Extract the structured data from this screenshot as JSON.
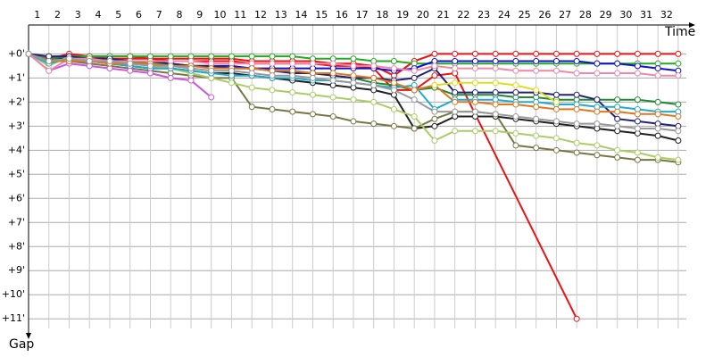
{
  "chart_data": {
    "type": "line",
    "x_axis_label": "Time",
    "y_axis_label": "Gap",
    "x": [
      0,
      1,
      2,
      3,
      4,
      5,
      6,
      7,
      8,
      9,
      10,
      11,
      12,
      13,
      14,
      15,
      16,
      17,
      18,
      19,
      20,
      21,
      22,
      23,
      24,
      25,
      26,
      27,
      28,
      29,
      30,
      31,
      32
    ],
    "xlim": [
      0,
      32.4
    ],
    "xticks": [
      1,
      2,
      3,
      4,
      5,
      6,
      7,
      8,
      9,
      10,
      11,
      12,
      13,
      14,
      15,
      16,
      17,
      18,
      19,
      20,
      21,
      22,
      23,
      24,
      25,
      26,
      27,
      28,
      29,
      30,
      31,
      32
    ],
    "ylim": [
      -1.2,
      11.4
    ],
    "y_inverted": true,
    "grid": true,
    "yticks": [
      {
        "value": 0,
        "label": "+0'"
      },
      {
        "value": 1,
        "label": "+1'"
      },
      {
        "value": 2,
        "label": "+2'"
      },
      {
        "value": 3,
        "label": "+3'"
      },
      {
        "value": 4,
        "label": "+4'"
      },
      {
        "value": 5,
        "label": "+5'"
      },
      {
        "value": 6,
        "label": "+6'"
      },
      {
        "value": 7,
        "label": "+7'"
      },
      {
        "value": 8,
        "label": "+8'"
      },
      {
        "value": 9,
        "label": "+9'"
      },
      {
        "value": 10,
        "label": "+10'"
      },
      {
        "value": 11,
        "label": "+11'"
      }
    ],
    "series": [
      {
        "color": "#ee1111",
        "values": [
          0,
          0.2,
          0,
          0.1,
          0.1,
          0.1,
          0.2,
          0.2,
          0.2,
          0.2,
          0.2,
          0.3,
          0.3,
          0.3,
          0.3,
          0.4,
          0.4,
          0.5,
          0.9,
          0.3,
          0,
          0,
          0,
          0,
          0,
          0,
          0,
          0,
          0,
          0,
          0,
          0,
          0
        ]
      },
      {
        "color": "#ee1111",
        "x": [
          0,
          1,
          2,
          3,
          4,
          5,
          6,
          7,
          8,
          9,
          10,
          11,
          12,
          13,
          14,
          15,
          16,
          17,
          18,
          19,
          20,
          21,
          27
        ],
        "values": [
          0,
          0.2,
          0.1,
          0.1,
          0.2,
          0.2,
          0.2,
          0.3,
          0.3,
          0.3,
          0.3,
          0.4,
          0.4,
          0.4,
          0.4,
          0.5,
          0.5,
          0.6,
          1.5,
          1.5,
          0.9,
          0.8,
          11
        ]
      },
      {
        "color": "#22aa22",
        "values": [
          0,
          0.3,
          0.1,
          0.1,
          0.1,
          0.1,
          0.1,
          0.1,
          0.1,
          0.1,
          0.1,
          0.1,
          0.1,
          0.1,
          0.2,
          0.2,
          0.2,
          0.3,
          0.3,
          0.4,
          0.4,
          0.4,
          0.4,
          0.4,
          0.4,
          0.4,
          0.4,
          0.4,
          0.4,
          0.4,
          0.4,
          0.4,
          0.4
        ]
      },
      {
        "color": "#1111cc",
        "values": [
          0,
          0.2,
          0.2,
          0.3,
          0.3,
          0.4,
          0.4,
          0.4,
          0.5,
          0.5,
          0.5,
          0.6,
          0.6,
          0.6,
          0.6,
          0.6,
          0.6,
          0.6,
          0.7,
          0.6,
          0.3,
          0.3,
          0.3,
          0.3,
          0.3,
          0.3,
          0.3,
          0.3,
          0.4,
          0.4,
          0.5,
          0.6,
          0.7
        ]
      },
      {
        "color": "#228833",
        "values": [
          0,
          0.2,
          0.1,
          0.2,
          0.3,
          0.3,
          0.4,
          0.4,
          0.5,
          0.5,
          0.6,
          0.6,
          0.7,
          0.7,
          0.8,
          0.9,
          1.0,
          1.2,
          1.3,
          1.5,
          1.4,
          1.7,
          1.7,
          1.7,
          1.8,
          1.8,
          1.9,
          1.9,
          1.9,
          1.9,
          1.9,
          2.0,
          2.1
        ]
      },
      {
        "color": "#222222",
        "values": [
          0,
          0.3,
          0.2,
          0.3,
          0.4,
          0.5,
          0.6,
          0.6,
          0.7,
          0.8,
          0.8,
          0.9,
          1.0,
          1.1,
          1.2,
          1.3,
          1.4,
          1.5,
          1.7,
          3.1,
          3.0,
          2.6,
          2.6,
          2.6,
          2.7,
          2.8,
          2.9,
          3.0,
          3.1,
          3.2,
          3.3,
          3.4,
          3.6
        ]
      },
      {
        "color": "#777744",
        "values": [
          0,
          0.2,
          0.3,
          0.4,
          0.5,
          0.6,
          0.7,
          0.8,
          0.9,
          1.0,
          1.0,
          2.2,
          2.3,
          2.4,
          2.5,
          2.6,
          2.8,
          2.9,
          3.0,
          3.1,
          2.7,
          2.4,
          2.4,
          2.5,
          3.8,
          3.9,
          4.0,
          4.1,
          4.2,
          4.3,
          4.4,
          4.4,
          4.5
        ]
      },
      {
        "color": "#aacc66",
        "values": [
          0,
          0.5,
          0.1,
          0.2,
          0.3,
          0.4,
          0.5,
          0.6,
          0.8,
          1.0,
          1.2,
          1.4,
          1.5,
          1.6,
          1.7,
          1.8,
          1.9,
          2.0,
          2.3,
          2.6,
          3.6,
          3.2,
          3.2,
          3.2,
          3.3,
          3.4,
          3.5,
          3.7,
          3.8,
          4.0,
          4.1,
          4.3,
          4.4
        ]
      },
      {
        "color": "#222277",
        "values": [
          0,
          0.1,
          0.1,
          0.2,
          0.2,
          0.3,
          0.3,
          0.4,
          0.5,
          0.5,
          0.6,
          0.6,
          0.7,
          0.8,
          0.8,
          0.9,
          1.0,
          1.0,
          1.1,
          1.0,
          0.6,
          1.6,
          1.6,
          1.6,
          1.6,
          1.6,
          1.7,
          1.7,
          1.9,
          2.7,
          2.8,
          2.9,
          3.0
        ]
      },
      {
        "color": "#22aacc",
        "values": [
          0,
          0.4,
          0.2,
          0.3,
          0.4,
          0.5,
          0.6,
          0.6,
          0.7,
          0.8,
          0.9,
          0.9,
          1.0,
          1.0,
          1.1,
          1.1,
          1.2,
          1.3,
          1.4,
          1.3,
          2.3,
          1.9,
          1.9,
          1.9,
          2.0,
          2.0,
          2.1,
          2.1,
          2.2,
          2.2,
          2.3,
          2.4,
          2.4
        ]
      },
      {
        "color": "#cc55dd",
        "x": [
          0,
          1,
          2,
          3,
          4,
          5,
          6,
          7,
          8,
          9
        ],
        "values": [
          0,
          0.7,
          0.4,
          0.5,
          0.6,
          0.7,
          0.8,
          1.0,
          1.1,
          1.8
        ]
      },
      {
        "color": "#ee88aa",
        "values": [
          0,
          0.7,
          0.2,
          0.2,
          0.3,
          0.3,
          0.3,
          0.3,
          0.3,
          0.4,
          0.4,
          0.4,
          0.4,
          0.4,
          0.4,
          0.4,
          0.5,
          0.5,
          0.6,
          0.7,
          0.5,
          0.6,
          0.6,
          0.6,
          0.7,
          0.7,
          0.7,
          0.8,
          0.8,
          0.8,
          0.8,
          0.9,
          0.9
        ]
      },
      {
        "color": "#dd7722",
        "values": [
          0,
          0.3,
          0.3,
          0.3,
          0.4,
          0.4,
          0.4,
          0.5,
          0.5,
          0.6,
          0.6,
          0.6,
          0.7,
          0.7,
          0.8,
          0.8,
          0.9,
          1.0,
          1.2,
          1.5,
          1.3,
          2.0,
          2.0,
          2.1,
          2.1,
          2.2,
          2.3,
          2.3,
          2.4,
          2.4,
          2.5,
          2.5,
          2.6
        ]
      },
      {
        "color": "#999999",
        "values": [
          0,
          0.3,
          0.2,
          0.3,
          0.3,
          0.4,
          0.5,
          0.5,
          0.6,
          0.7,
          0.7,
          0.8,
          0.9,
          0.9,
          1.0,
          1.1,
          1.2,
          1.3,
          1.5,
          1.9,
          2.4,
          2.4,
          2.4,
          2.5,
          2.6,
          2.7,
          2.8,
          2.9,
          2.9,
          3.0,
          3.1,
          3.1,
          3.2
        ]
      },
      {
        "color": "#dddd22",
        "x": [
          20,
          21,
          22,
          23,
          24,
          25,
          26
        ],
        "values": [
          1.3,
          1.2,
          1.2,
          1.2,
          1.3,
          1.5,
          2.0
        ]
      }
    ]
  }
}
